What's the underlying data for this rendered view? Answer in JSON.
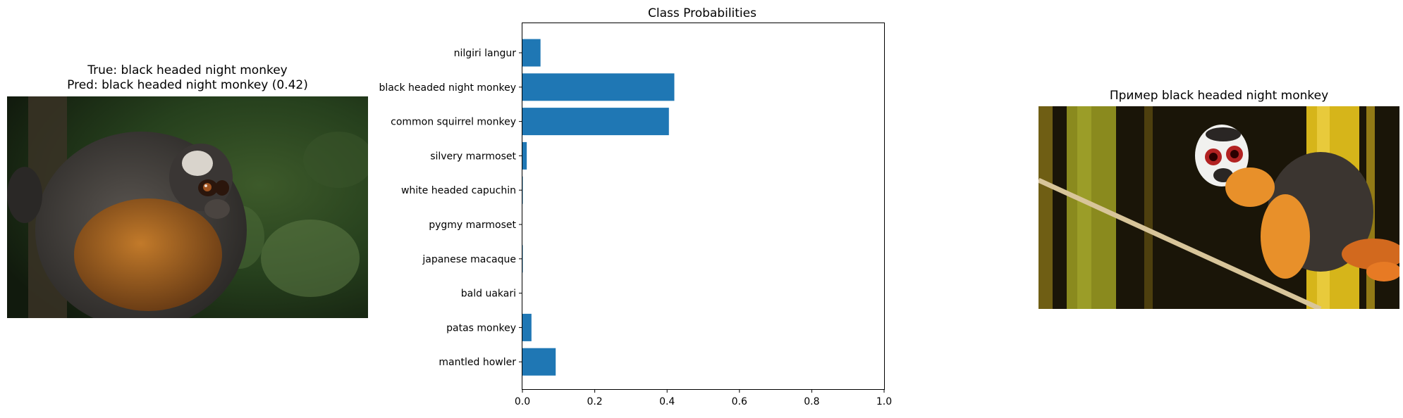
{
  "left_panel": {
    "title_line1": "True: black headed night monkey",
    "title_line2": "Pred: black headed night monkey (0.42)",
    "image_subject": "black headed night monkey photo"
  },
  "right_panel": {
    "title": "Пример black headed night monkey",
    "image_subject": "black headed night monkey on bamboo photo"
  },
  "chart_data": {
    "type": "bar",
    "orientation": "horizontal",
    "title": "Class Probabilities",
    "xlabel": "",
    "ylabel": "",
    "categories": [
      "nilgiri langur",
      "black headed night monkey",
      "common squirrel monkey",
      "silvery marmoset",
      "white headed capuchin",
      "pygmy marmoset",
      "japanese macaque",
      "bald uakari",
      "patas monkey",
      "mantled howler"
    ],
    "values": [
      0.05,
      0.42,
      0.405,
      0.012,
      0.001,
      0.0,
      0.001,
      0.0,
      0.025,
      0.092
    ],
    "xlim": [
      0.0,
      1.0
    ],
    "xticks": [
      "0.0",
      "0.2",
      "0.4",
      "0.6",
      "0.8",
      "1.0"
    ],
    "grid": false,
    "bar_color": "#1f77b4"
  }
}
